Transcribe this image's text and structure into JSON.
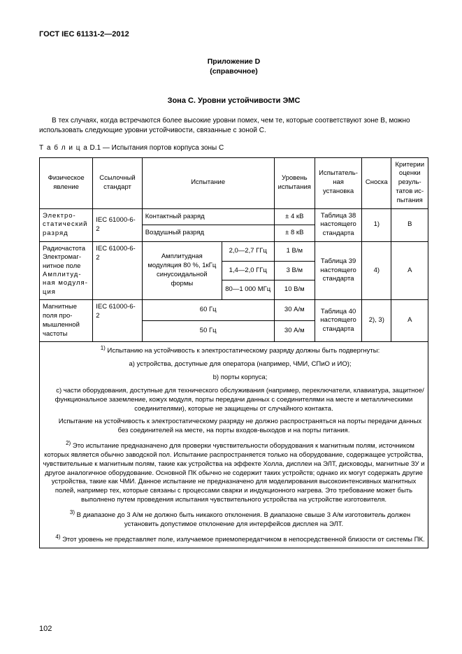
{
  "doc_header": "ГОСТ IEC 61131-2—2012",
  "annex": {
    "line1": "Приложение D",
    "line2": "(справочное)"
  },
  "section_title": "Зона С. Уровни устойчивости ЭМС",
  "intro": "В тех случаях, когда встречаются более высокие уровни помех, чем те, которые соответствуют зоне B, можно использовать следующие уровни устойчивости, связанные с зоной C.",
  "table_caption_spaced": "Т а б л и ц а",
  "table_caption_rest": "  D.1 — Испытания портов корпуса зоны C",
  "columns": {
    "c1": "Физическое явление",
    "c2": "Ссылочный стандарт",
    "c3": "Испытание",
    "c4": "Уровень испытания",
    "c5": "Испытатель­ная установка",
    "c6": "Сноска",
    "c7": "Критерии оценки резуль­татов ис­пытания"
  },
  "rows": {
    "esd": {
      "phys": "Электро­статический разряд",
      "ref": "IEC 61000-6-2",
      "t1": "Контактный разряд",
      "l1": "± 4 кВ",
      "t2": "Воздушный разряд",
      "l2": "± 8 кВ",
      "setup": "Таблица 38 настоящего стандарта",
      "foot": "1)",
      "crit": "B"
    },
    "rf": {
      "phys1": "Радиочасто­та",
      "phys2": "Электромаг­нитное поле",
      "phys3": "Амплитуд­ная модуля­ция",
      "ref": "IEC 61000-6-2",
      "mod": "Ампли­тудная модуляция 80 %, 1кГц синусои­дальной формы",
      "b1_r": "2,0—2,7 ГГц",
      "b1_l": "1 В/м",
      "b2_r": "1,4—2,0 ГГц",
      "b2_l": "3 В/м",
      "b3_r": "80—1 000 МГц",
      "b3_l": "10 В/м",
      "setup": "Таблица 39 настоящего стандарта",
      "foot": "4)",
      "crit": "A"
    },
    "mag": {
      "phys": "Магнитные поля про­мышленной частоты",
      "ref": "IEC 61000-6-2",
      "t1": "60 Гц",
      "l1": "30 А/м",
      "t2": "50 Гц",
      "l2": "30 А/м",
      "setup": "Таблица 40 настоящего стандарта",
      "foot": "2), 3)",
      "crit": "A"
    }
  },
  "notes": {
    "n1_intro": "Испытанию на устойчивость к электростатическому разряду должны быть подвергнуты:",
    "n1_a": "устройства, доступные для оператора (например, ЧМИ, СПиО и ИО);",
    "n1_b": "порты корпуса;",
    "n1_c": "части оборудования, доступные для технического обслуживания (например, переключатели, клавиату­ра, защитное/функциональное заземление, кожух модуля, порты передачи данных с соединителями на месте и металлическими соединителями), которые не защищены от случайного контакта.",
    "n1_tail": "Испытание на устойчивость к электростатическому разряду не должно распространяться на порты пере­дачи данных без соединителей на месте, на порты входов-выходов и на порты питания.",
    "n2": "Это испытание предназначено для проверки чувствительности оборудования к магнитным полям, ис­точником которых является обычно заводской пол. Испытание распространяется только на оборудование, со­держащее устройства, чувствительные к магнитным полям, такие как устройства на эффекте Холла, дисплеи на ЭЛТ, дисководы, магнитные ЗУ и другое аналогичное оборудование. Основной ПК обычно не содержит таких устройств; однако их могут содержать другие устройства, такие как ЧМИ. Данное испытание не предназначено для моделирования высокоинтенсивных магнитных полей, например тех, которые связаны с процессами сварки и индукционного нагрева. Это требование может быть выполнено путем проведения испытания чувствительного устройства на устройстве изготовителя.",
    "n3": "В диапазоне до 3 А/м не должно быть никакого отклонения. В диапазоне свыше 3 А/м изготовитель дол­жен установить допустимое отклонение для интерфейсов дисплея на ЭЛТ.",
    "n4": "Этот уровень не представляет поле, излучаемое приемопередатчиком в непосредственной близости от системы ПК."
  },
  "page_number": "102",
  "style": {
    "border_color": "#000000",
    "text_color": "#000000",
    "background": "#ffffff"
  }
}
